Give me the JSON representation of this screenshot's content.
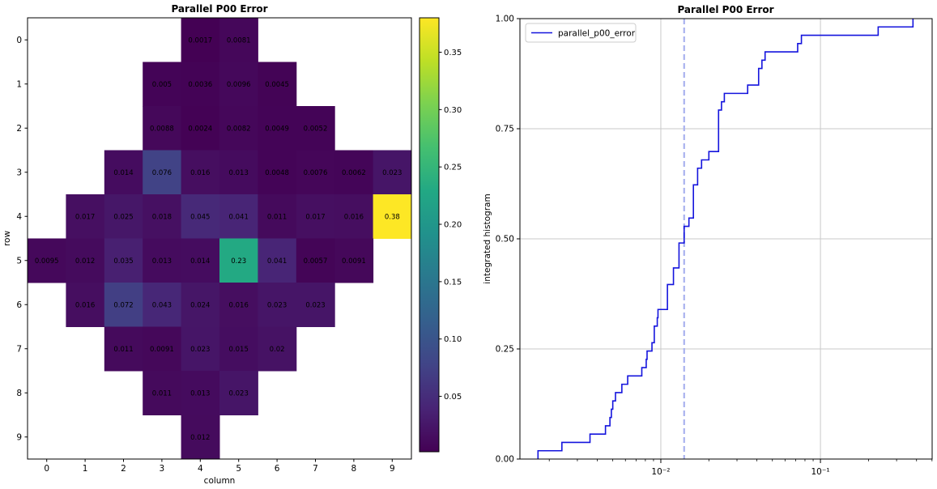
{
  "figure": {
    "background": "#ffffff"
  },
  "chart_data": [
    {
      "type": "heatmap",
      "title": "Parallel P00 Error",
      "xlabel": "column",
      "ylabel": "row",
      "row_labels": [
        "0",
        "1",
        "2",
        "3",
        "4",
        "5",
        "6",
        "7",
        "8",
        "9"
      ],
      "col_labels": [
        "0",
        "1",
        "2",
        "3",
        "4",
        "5",
        "6",
        "7",
        "8",
        "9"
      ],
      "colormap": "viridis",
      "vmin": 0.0017,
      "vmax": 0.38,
      "grid": false,
      "values": [
        [
          null,
          null,
          null,
          null,
          0.0017,
          0.0081,
          null,
          null,
          null,
          null
        ],
        [
          null,
          null,
          null,
          0.005,
          0.0036,
          0.0096,
          0.0045,
          null,
          null,
          null
        ],
        [
          null,
          null,
          null,
          0.0088,
          0.0024,
          0.0082,
          0.0049,
          0.0052,
          null,
          null
        ],
        [
          null,
          null,
          0.014,
          0.076,
          0.016,
          0.013,
          0.0048,
          0.0076,
          0.0062,
          0.023
        ],
        [
          null,
          0.017,
          0.025,
          0.018,
          0.045,
          0.041,
          0.011,
          0.017,
          0.016,
          0.38
        ],
        [
          0.0095,
          0.012,
          0.035,
          0.013,
          0.014,
          0.23,
          0.041,
          0.0057,
          0.0091,
          null
        ],
        [
          null,
          0.016,
          0.072,
          0.043,
          0.024,
          0.016,
          0.023,
          0.023,
          null,
          null
        ],
        [
          null,
          null,
          0.011,
          0.0091,
          0.023,
          0.015,
          0.02,
          null,
          null,
          null
        ],
        [
          null,
          null,
          null,
          0.011,
          0.013,
          0.023,
          null,
          null,
          null,
          null
        ],
        [
          null,
          null,
          null,
          null,
          0.012,
          null,
          null,
          null,
          null,
          null
        ]
      ],
      "colorbar": {
        "tick_values": [
          0.05,
          0.1,
          0.15,
          0.2,
          0.25,
          0.3,
          0.35
        ],
        "tick_labels": [
          "0.05",
          "0.10",
          "0.15",
          "0.20",
          "0.25",
          "0.30",
          "0.35"
        ]
      }
    },
    {
      "type": "line",
      "style": "step",
      "title": "Parallel P00 Error",
      "xlabel": "",
      "ylabel": "integrated histogram",
      "legend_label": "parallel_p00_error",
      "legend_position": "upper left",
      "xscale": "log",
      "xlim": [
        0.00131,
        0.501
      ],
      "ylim": [
        0.0,
        1.0
      ],
      "grid": true,
      "x_tick_values": [
        0.01,
        0.1
      ],
      "x_tick_labels": [
        "10⁻²",
        "10⁻¹"
      ],
      "y_tick_values": [
        0.0,
        0.25,
        0.5,
        0.75,
        1.0
      ],
      "y_tick_labels": [
        "0.00",
        "0.25",
        "0.50",
        "0.75",
        "1.00"
      ],
      "vline_x": 0.014,
      "line_color": "#1414dd",
      "vline_color": "#a9b2ef",
      "grid_color": "#c9c9c9",
      "values": [
        0.0017,
        0.0024,
        0.0036,
        0.0045,
        0.0048,
        0.0049,
        0.005,
        0.0052,
        0.0057,
        0.0062,
        0.0076,
        0.0081,
        0.0082,
        0.0088,
        0.0091,
        0.0091,
        0.0095,
        0.0096,
        0.011,
        0.011,
        0.011,
        0.012,
        0.012,
        0.013,
        0.013,
        0.013,
        0.014,
        0.014,
        0.015,
        0.016,
        0.016,
        0.016,
        0.016,
        0.017,
        0.017,
        0.018,
        0.02,
        0.023,
        0.023,
        0.023,
        0.023,
        0.023,
        0.024,
        0.025,
        0.035,
        0.041,
        0.041,
        0.043,
        0.045,
        0.072,
        0.076,
        0.23,
        0.38
      ]
    }
  ]
}
